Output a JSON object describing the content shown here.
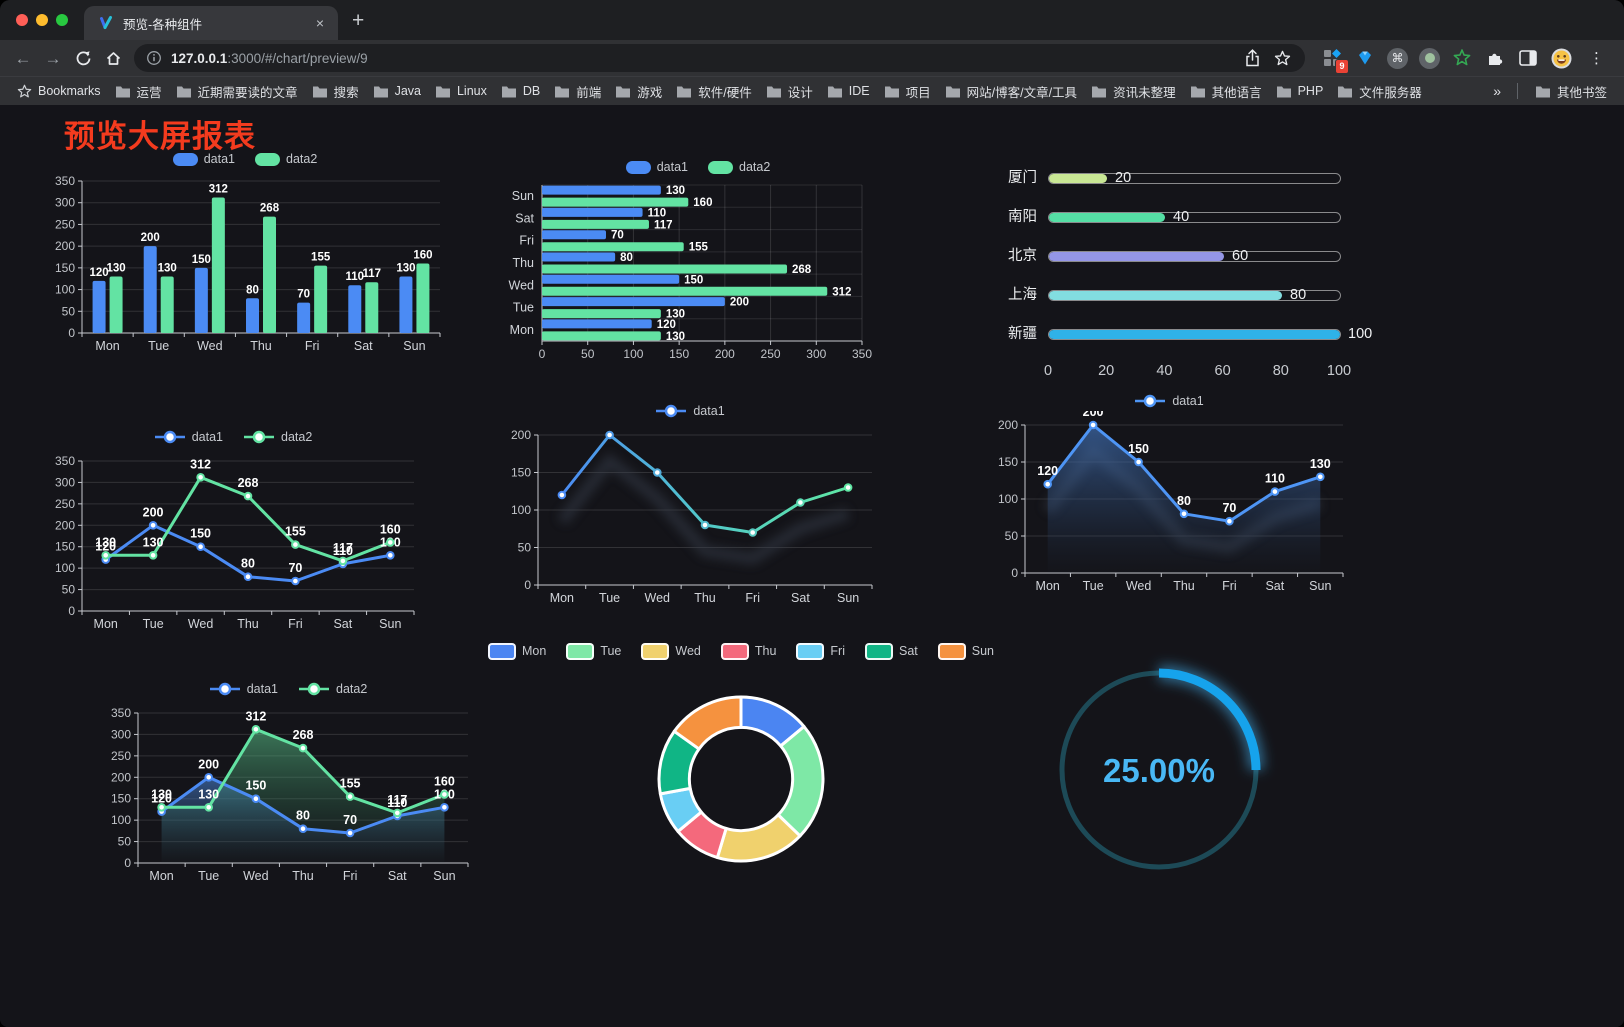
{
  "browser": {
    "tab_title": "预览-各种组件",
    "tab_close": "×",
    "new_tab": "+",
    "url_host": "127.0.0.1",
    "url_rest": ":3000/#/chart/preview/9",
    "menu_dots": "⋮",
    "extension_badge_count": "9",
    "command_glyph": "⌘",
    "bookmarks_label": "Bookmarks",
    "bookmark_folders": [
      "运营",
      "近期需要读的文章",
      "搜索",
      "Java",
      "Linux",
      "DB",
      "前端",
      "游戏",
      "软件/硬件",
      "设计",
      "IDE",
      "项目",
      "网站/博客/文章/工具",
      "资讯未整理",
      "其他语言",
      "PHP",
      "文件服务器"
    ],
    "bookmarks_overflow": "»",
    "other_bookmarks_label": "其他书签"
  },
  "page": {
    "title": "预览大屏报表"
  },
  "chart_data": [
    {
      "id": "grouped-bar",
      "type": "bar",
      "categories": [
        "Mon",
        "Tue",
        "Wed",
        "Thu",
        "Fri",
        "Sat",
        "Sun"
      ],
      "series": [
        {
          "name": "data1",
          "color": "#4b8bf4",
          "values": [
            120,
            200,
            150,
            80,
            70,
            110,
            130
          ]
        },
        {
          "name": "data2",
          "color": "#63e3a3",
          "values": [
            130,
            130,
            312,
            268,
            155,
            117,
            160
          ]
        }
      ],
      "ylim": [
        0,
        350
      ],
      "ytick": 50,
      "grid": true,
      "legend_position": "top",
      "value_labels": true
    },
    {
      "id": "horizontal-bar",
      "type": "bar",
      "orientation": "horizontal",
      "categories_top_to_bottom": [
        "Sun",
        "Sat",
        "Fri",
        "Thu",
        "Wed",
        "Tue",
        "Mon"
      ],
      "categories": [
        "Mon",
        "Tue",
        "Wed",
        "Thu",
        "Fri",
        "Sat",
        "Sun"
      ],
      "series": [
        {
          "name": "data1",
          "color": "#4b8bf4",
          "values": [
            120,
            200,
            150,
            80,
            70,
            110,
            130
          ]
        },
        {
          "name": "data2",
          "color": "#63e3a3",
          "values": [
            130,
            130,
            312,
            268,
            155,
            117,
            160
          ]
        }
      ],
      "xlim": [
        0,
        350
      ],
      "xtick": 50,
      "legend_position": "top",
      "value_labels": true
    },
    {
      "id": "progress-bars",
      "type": "bar",
      "subtype": "progress-list",
      "max": 100,
      "axis_ticks": [
        0,
        20,
        40,
        60,
        80,
        100
      ],
      "items": [
        {
          "label": "厦门",
          "value": 20,
          "color": "#c9e795"
        },
        {
          "label": "南阳",
          "value": 40,
          "color": "#55dfa5"
        },
        {
          "label": "北京",
          "value": 60,
          "color": "#9496e7"
        },
        {
          "label": "上海",
          "value": 80,
          "color": "#82dde0"
        },
        {
          "label": "新疆",
          "value": 100,
          "color": "#2fb2e8"
        }
      ]
    },
    {
      "id": "dual-line",
      "type": "line",
      "categories": [
        "Mon",
        "Tue",
        "Wed",
        "Thu",
        "Fri",
        "Sat",
        "Sun"
      ],
      "series": [
        {
          "name": "data1",
          "color": "#4b8bf4",
          "values": [
            120,
            200,
            150,
            80,
            70,
            110,
            130
          ]
        },
        {
          "name": "data2",
          "color": "#63e3a3",
          "values": [
            130,
            130,
            312,
            268,
            155,
            117,
            160
          ]
        }
      ],
      "ylim": [
        0,
        350
      ],
      "ytick": 50,
      "legend_position": "top",
      "value_labels": true
    },
    {
      "id": "gradient-line",
      "type": "line",
      "categories": [
        "Mon",
        "Tue",
        "Wed",
        "Thu",
        "Fri",
        "Sat",
        "Sun"
      ],
      "series": [
        {
          "name": "data1",
          "gradient": [
            "#4b8bf4",
            "#52c9c9",
            "#5fe7a4"
          ],
          "values": [
            120,
            200,
            150,
            80,
            70,
            110,
            130
          ]
        }
      ],
      "ylim": [
        0,
        200
      ],
      "ytick": 50,
      "legend_position": "top",
      "value_labels": false,
      "shadow": true
    },
    {
      "id": "area-line",
      "type": "area",
      "categories": [
        "Mon",
        "Tue",
        "Wed",
        "Thu",
        "Fri",
        "Sat",
        "Sun"
      ],
      "series": [
        {
          "name": "data1",
          "color": "#4e95f5",
          "area": "blue",
          "values": [
            120,
            200,
            150,
            80,
            70,
            110,
            130
          ]
        }
      ],
      "ylim": [
        0,
        200
      ],
      "ytick": 50,
      "legend_position": "top",
      "value_labels": true,
      "shadow": true
    },
    {
      "id": "dual-area-line",
      "type": "area",
      "categories": [
        "Mon",
        "Tue",
        "Wed",
        "Thu",
        "Fri",
        "Sat",
        "Sun"
      ],
      "series": [
        {
          "name": "data1",
          "color": "#4b8bf4",
          "area": "blue",
          "values": [
            120,
            200,
            150,
            80,
            70,
            110,
            130
          ]
        },
        {
          "name": "data2",
          "color": "#63e3a3",
          "area": "green",
          "values": [
            130,
            130,
            312,
            268,
            155,
            117,
            160
          ]
        }
      ],
      "ylim": [
        0,
        350
      ],
      "ytick": 50,
      "legend_position": "top",
      "value_labels": true
    },
    {
      "id": "donut",
      "type": "pie",
      "inner_radius_ratio": 0.63,
      "categories": [
        "Mon",
        "Tue",
        "Wed",
        "Thu",
        "Fri",
        "Sat",
        "Sun"
      ],
      "values": [
        120,
        200,
        150,
        80,
        70,
        110,
        130
      ],
      "colors": [
        "#4b85f2",
        "#7ee8a6",
        "#f0d16d",
        "#f4697c",
        "#69cef4",
        "#10b585",
        "#f5923f"
      ],
      "legend_position": "top"
    },
    {
      "id": "gauge",
      "type": "gauge",
      "value": 25,
      "display": "25.00%",
      "color": "#16a3ec",
      "track_color": "#1d4a57",
      "text_color": "#49b8f5"
    }
  ]
}
